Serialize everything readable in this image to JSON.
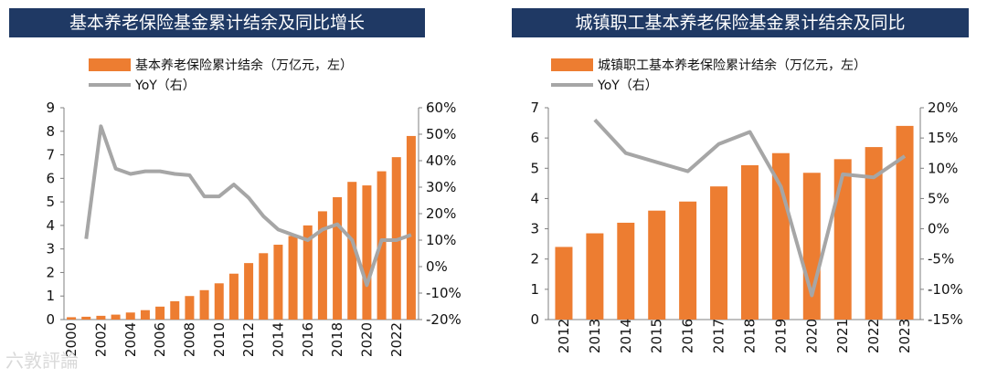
{
  "colors": {
    "bar": "#ed7d31",
    "line": "#a6a6a6",
    "title_bg": "#1f3964",
    "axis": "#7f7f7f"
  },
  "watermark": "六敦評論",
  "chart_data": [
    {
      "type": "bar",
      "title": "基本养老保险基金累计结余及同比增长",
      "legend": {
        "bar": "基本养老保险累计结余（万亿元，左）",
        "line": "YoY（右）"
      },
      "categories": [
        "2000",
        "2001",
        "2002",
        "2003",
        "2004",
        "2005",
        "2006",
        "2007",
        "2008",
        "2009",
        "2010",
        "2011",
        "2012",
        "2013",
        "2014",
        "2015",
        "2016",
        "2017",
        "2018",
        "2019",
        "2020",
        "2021",
        "2022",
        "2023"
      ],
      "x_tick_labels": [
        "2000",
        "2002",
        "2004",
        "2006",
        "2008",
        "2010",
        "2012",
        "2014",
        "2016",
        "2018",
        "2020",
        "2022"
      ],
      "series": [
        {
          "name": "基本养老保险累计结余",
          "axis": "left",
          "type": "bar",
          "values": [
            0.1,
            0.12,
            0.16,
            0.21,
            0.3,
            0.4,
            0.55,
            0.78,
            1.0,
            1.25,
            1.54,
            1.95,
            2.4,
            2.82,
            3.18,
            3.55,
            4.0,
            4.6,
            5.2,
            5.85,
            5.7,
            6.3,
            6.9,
            7.8
          ]
        },
        {
          "name": "YoY",
          "axis": "right",
          "type": "line",
          "values": [
            null,
            10.5,
            53,
            37,
            35,
            36,
            36,
            35,
            34.5,
            26.5,
            26.5,
            31,
            26,
            19,
            14,
            12,
            10,
            14,
            16,
            10,
            -7,
            10,
            10,
            12
          ]
        }
      ],
      "left_axis": {
        "ylim": [
          0,
          9
        ],
        "ticks": [
          "0",
          "1",
          "2",
          "3",
          "4",
          "5",
          "6",
          "7",
          "8",
          "9"
        ]
      },
      "right_axis": {
        "ylim": [
          -20,
          60
        ],
        "ticks": [
          "-20%",
          "-10%",
          "0%",
          "10%",
          "20%",
          "30%",
          "40%",
          "50%",
          "60%"
        ]
      }
    },
    {
      "type": "bar",
      "title": "城镇职工基本养老保险基金累计结余及同比",
      "legend": {
        "bar": "城镇职工基本养老保险累计结余（万亿元，左）",
        "line": "YoY（右）"
      },
      "categories": [
        "2012",
        "2013",
        "2014",
        "2015",
        "2016",
        "2017",
        "2018",
        "2019",
        "2020",
        "2021",
        "2022",
        "2023"
      ],
      "x_tick_labels": [
        "2012",
        "2013",
        "2014",
        "2015",
        "2016",
        "2017",
        "2018",
        "2019",
        "2020",
        "2021",
        "2022",
        "2023"
      ],
      "series": [
        {
          "name": "城镇职工基本养老保险累计结余",
          "axis": "left",
          "type": "bar",
          "values": [
            2.4,
            2.85,
            3.2,
            3.6,
            3.9,
            4.4,
            5.1,
            5.5,
            4.85,
            5.3,
            5.7,
            6.4
          ]
        },
        {
          "name": "YoY",
          "axis": "right",
          "type": "line",
          "values": [
            null,
            18,
            12.5,
            11,
            9.5,
            14,
            16,
            7,
            -11,
            9,
            8.5,
            12
          ]
        }
      ],
      "left_axis": {
        "ylim": [
          0,
          7
        ],
        "ticks": [
          "0",
          "1",
          "2",
          "3",
          "4",
          "5",
          "6",
          "7"
        ]
      },
      "right_axis": {
        "ylim": [
          -15,
          20
        ],
        "ticks": [
          "-15%",
          "-10%",
          "-5%",
          "0%",
          "5%",
          "10%",
          "15%",
          "20%"
        ]
      }
    }
  ]
}
